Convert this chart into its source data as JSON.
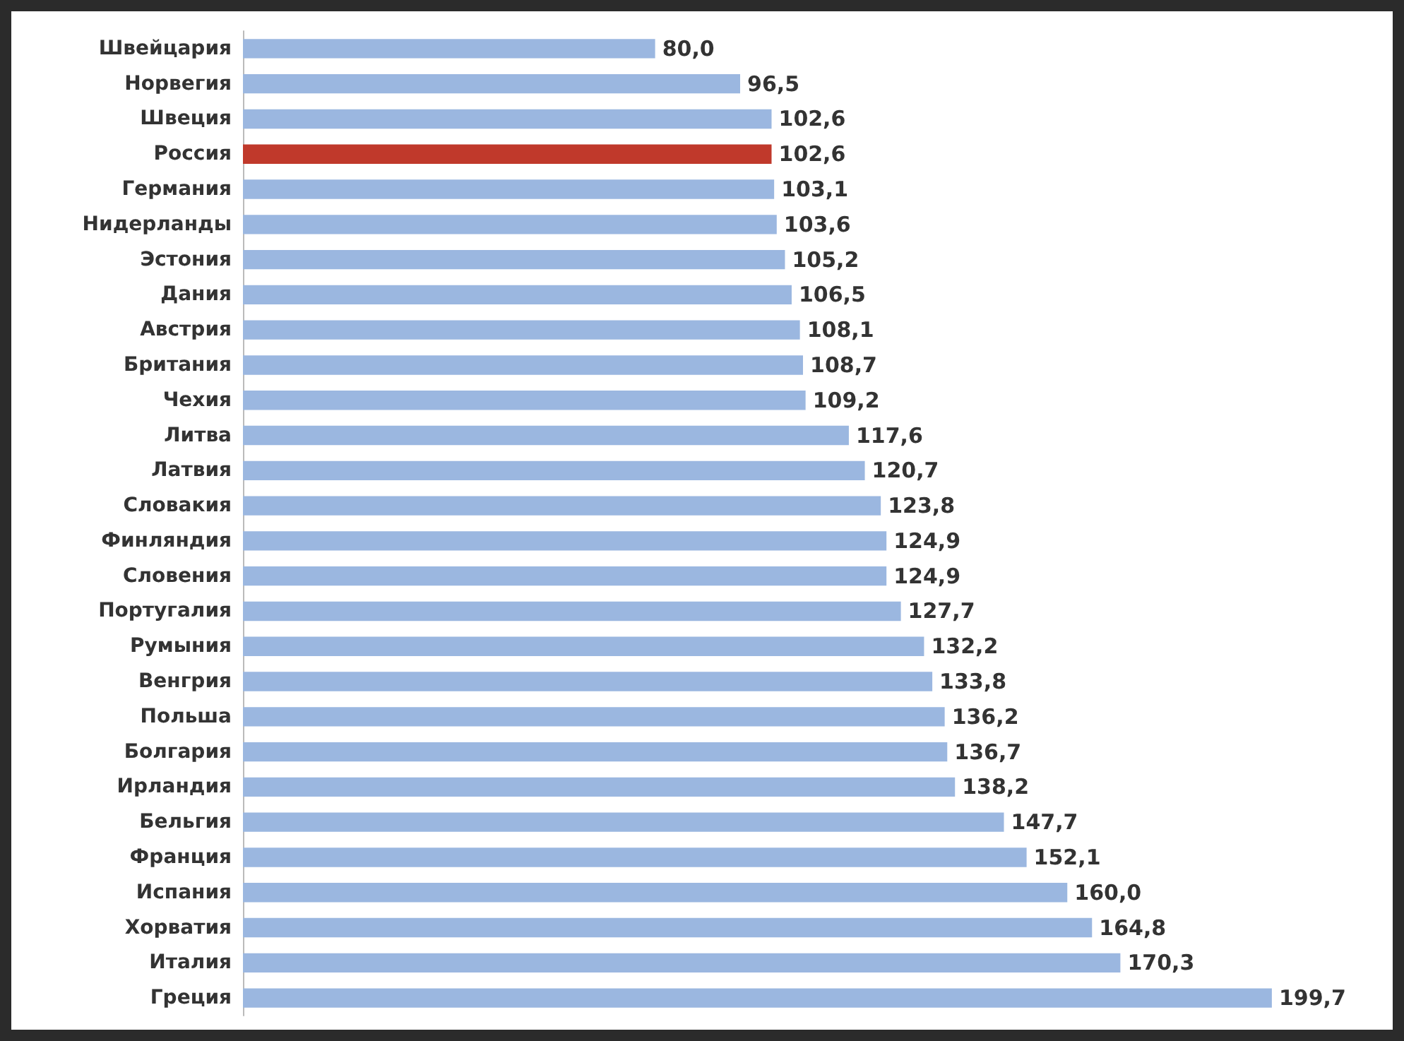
{
  "chart_data": {
    "type": "bar",
    "orientation": "horizontal",
    "categories": [
      "Швейцария",
      "Норвегия",
      "Швеция",
      "Россия",
      "Германия",
      "Нидерланды",
      "Эстония",
      "Дания",
      "Австрия",
      "Британия",
      "Чехия",
      "Литва",
      "Латвия",
      "Словакия",
      "Финляндия",
      "Словения",
      "Португалия",
      "Румыния",
      "Венгрия",
      "Польша",
      "Болгария",
      "Ирландия",
      "Бельгия",
      "Франция",
      "Испания",
      "Хорватия",
      "Италия",
      "Греция"
    ],
    "values": [
      80.0,
      96.5,
      102.6,
      102.6,
      103.1,
      103.6,
      105.2,
      106.5,
      108.1,
      108.7,
      109.2,
      117.6,
      120.7,
      123.8,
      124.9,
      124.9,
      127.7,
      132.2,
      133.8,
      136.2,
      136.7,
      138.2,
      147.7,
      152.1,
      160.0,
      164.8,
      170.3,
      199.7
    ],
    "value_labels": [
      "80,0",
      "96,5",
      "102,6",
      "102,6",
      "103,1",
      "103,6",
      "105,2",
      "106,5",
      "108,1",
      "108,7",
      "109,2",
      "117,6",
      "120,7",
      "123,8",
      "124,9",
      "124,9",
      "127,7",
      "132,2",
      "133,8",
      "136,2",
      "136,7",
      "138,2",
      "147,7",
      "152,1",
      "160,0",
      "164,8",
      "170,3",
      "199,7"
    ],
    "colors": [
      "#9bb7e0",
      "#9bb7e0",
      "#9bb7e0",
      "#c0392b",
      "#9bb7e0",
      "#9bb7e0",
      "#9bb7e0",
      "#9bb7e0",
      "#9bb7e0",
      "#9bb7e0",
      "#9bb7e0",
      "#9bb7e0",
      "#9bb7e0",
      "#9bb7e0",
      "#9bb7e0",
      "#9bb7e0",
      "#9bb7e0",
      "#9bb7e0",
      "#9bb7e0",
      "#9bb7e0",
      "#9bb7e0",
      "#9bb7e0",
      "#9bb7e0",
      "#9bb7e0",
      "#9bb7e0",
      "#9bb7e0",
      "#9bb7e0",
      "#9bb7e0"
    ]
  }
}
